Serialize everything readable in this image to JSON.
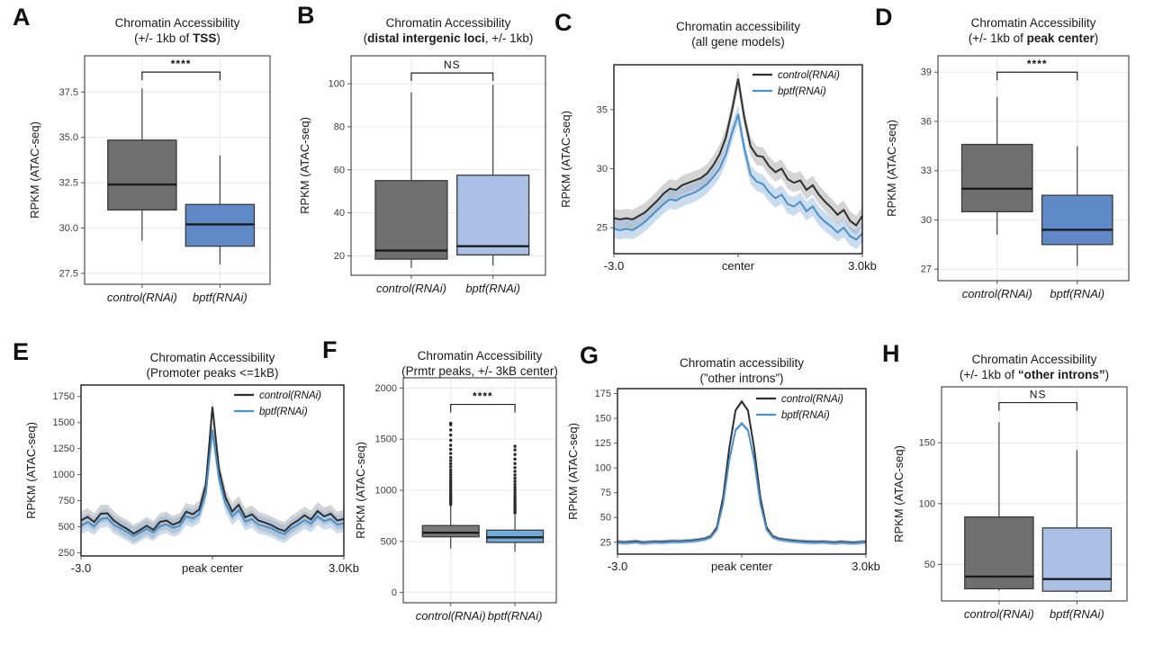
{
  "figure": {
    "background": "#ffffff",
    "y_axis_label": "RPKM (ATAC-seq)"
  },
  "colors": {
    "box_gray": "#6f6f6f",
    "box_blue_medium": "#5f89c7",
    "box_blue_light": "#a9c0e4",
    "box_blue_f": "#74aad8",
    "line_control": "#2e2e2e",
    "line_bptf": "#4a8fc8"
  },
  "chart_data": [
    {
      "letter": "A",
      "type": "box",
      "title1": "Chromatin Accessibility",
      "title2": [
        {
          "t": "(+/- 1kb of "
        },
        {
          "t": "TSS",
          "b": 1
        },
        {
          "t": ")"
        }
      ],
      "ylabel": "RPKM (ATAC-seq)",
      "yticks": [
        27.5,
        30.0,
        32.5,
        35.0,
        37.5
      ],
      "ytick_labels": [
        "27.5",
        "30.0",
        "32.5",
        "35.0",
        "37.5"
      ],
      "ylim": [
        26.9,
        39.5
      ],
      "categories": [
        "control(RNAi)",
        "bptf(RNAi)"
      ],
      "boxes": [
        {
          "whislo": 29.3,
          "q1": 31.0,
          "med": 32.4,
          "q3": 34.85,
          "whishi": 37.7,
          "fill": "#6f6f6f"
        },
        {
          "whislo": 28.0,
          "q1": 29.0,
          "med": 30.2,
          "q3": 31.3,
          "whishi": 34.0,
          "fill": "#5f89c7"
        }
      ],
      "sig": {
        "label": "****",
        "y": 38.6
      }
    },
    {
      "letter": "B",
      "type": "box",
      "title1": "Chromatin Accessibility",
      "title2": [
        {
          "t": "("
        },
        {
          "t": "distal intergenic loci",
          "b": 1
        },
        {
          "t": ", +/- 1kb)"
        }
      ],
      "ylabel": "RPKM (ATAC-seq)",
      "yticks": [
        20,
        40,
        60,
        80,
        100
      ],
      "ytick_labels": [
        "20",
        "40",
        "60",
        "80",
        "100"
      ],
      "ylim": [
        11,
        113
      ],
      "categories": [
        "control(RNAi)",
        "bptf(RNAi)"
      ],
      "boxes": [
        {
          "whislo": 14.5,
          "q1": 18.5,
          "med": 22.5,
          "q3": 55.0,
          "whishi": 96.0,
          "fill": "#6f6f6f"
        },
        {
          "whislo": 15.5,
          "q1": 20.5,
          "med": 24.5,
          "q3": 57.5,
          "whishi": 99.5,
          "fill": "#a9c0e4"
        }
      ],
      "sig": {
        "label": "NS",
        "y": 105
      }
    },
    {
      "letter": "C",
      "type": "line",
      "title1": "Chromatin accessibility",
      "title2": [
        {
          "t": "(all gene models)"
        }
      ],
      "ylabel": "RPKM (ATAC-seq)",
      "yticks": [
        25,
        30,
        35
      ],
      "ytick_labels": [
        "25",
        "30",
        "35"
      ],
      "ylim": [
        22.8,
        38.8
      ],
      "xtick_labels": [
        "-3.0",
        "center",
        "3.0kb"
      ],
      "x_range_kb": [
        -3.0,
        3.0
      ],
      "band_hw": 0.8,
      "series": [
        {
          "name": "control(RNAi)",
          "color": "#2e2e2e",
          "band": "rgba(125,125,125,0.33)",
          "values": [
            25.8,
            25.7,
            25.8,
            25.7,
            26.0,
            26.3,
            26.8,
            27.3,
            27.9,
            28.3,
            28.2,
            28.6,
            28.8,
            29.0,
            29.2,
            29.6,
            30.3,
            31.2,
            32.6,
            34.9,
            37.6,
            34.3,
            31.9,
            31.1,
            31.0,
            30.2,
            29.7,
            30.0,
            29.1,
            28.8,
            29.0,
            28.2,
            28.6,
            27.8,
            27.2,
            26.7,
            26.1,
            26.5,
            25.6,
            25.2,
            26.0
          ]
        },
        {
          "name": "bptf(RNAi)",
          "color": "#4a8fc8",
          "band": "rgba(140,178,220,0.45)",
          "values": [
            24.9,
            24.8,
            24.9,
            24.8,
            25.1,
            25.5,
            26.0,
            26.5,
            27.0,
            27.4,
            27.3,
            27.6,
            27.8,
            28.0,
            28.3,
            28.7,
            29.3,
            30.0,
            31.2,
            33.0,
            34.6,
            31.7,
            29.5,
            28.9,
            28.7,
            28.0,
            27.5,
            27.8,
            27.0,
            26.8,
            27.2,
            26.4,
            26.8,
            26.0,
            25.5,
            25.1,
            24.6,
            25.0,
            24.3,
            24.0,
            24.5
          ]
        }
      ]
    },
    {
      "letter": "D",
      "type": "box",
      "title1": "Chromatin Accessibility",
      "title2": [
        {
          "t": "(+/- 1kb of "
        },
        {
          "t": "peak center",
          "b": 1
        },
        {
          "t": ")"
        }
      ],
      "ylabel": "RPKM (ATAC-seq)",
      "yticks": [
        27,
        30,
        33,
        36,
        39
      ],
      "ytick_labels": [
        "27",
        "30",
        "33",
        "36",
        "39"
      ],
      "ylim": [
        26.3,
        40.0
      ],
      "categories": [
        "control(RNAi)",
        "bptf(RNAi)"
      ],
      "boxes": [
        {
          "whislo": 29.1,
          "q1": 30.5,
          "med": 31.9,
          "q3": 34.6,
          "whishi": 37.5,
          "fill": "#6f6f6f"
        },
        {
          "whislo": 27.2,
          "q1": 28.5,
          "med": 29.4,
          "q3": 31.5,
          "whishi": 34.5,
          "fill": "#5f89c7"
        }
      ],
      "sig": {
        "label": "****",
        "y": 39.0
      }
    },
    {
      "letter": "E",
      "type": "line",
      "title1": "Chromatin Accessibility",
      "title2": [
        {
          "t": "(Promoter peaks <=1kB)"
        }
      ],
      "ylabel": "RPKM (ATAC-seq)",
      "yticks": [
        250,
        500,
        750,
        1000,
        1250,
        1500,
        1750
      ],
      "ytick_labels": [
        "250",
        "500",
        "750",
        "1000",
        "1250",
        "1500",
        "1750"
      ],
      "ylim": [
        220,
        1860
      ],
      "xtick_labels": [
        "-3.0",
        "peak center",
        "3.0Kb"
      ],
      "x_range_kb": [
        -3.0,
        3.0
      ],
      "band_hw": 85,
      "series": [
        {
          "name": "control(RNAi)",
          "color": "#2e2e2e",
          "band": "rgba(125,125,125,0.33)",
          "values": [
            560,
            595,
            545,
            625,
            630,
            560,
            515,
            480,
            435,
            470,
            510,
            470,
            545,
            560,
            520,
            545,
            645,
            620,
            665,
            905,
            1650,
            1050,
            780,
            645,
            710,
            590,
            620,
            560,
            540,
            515,
            480,
            460,
            520,
            560,
            610,
            570,
            650,
            600,
            625,
            560,
            575
          ]
        },
        {
          "name": "bptf(RNAi)",
          "color": "#4a8fc8",
          "band": "rgba(140,178,220,0.45)",
          "values": [
            510,
            545,
            505,
            575,
            585,
            520,
            485,
            450,
            410,
            445,
            480,
            445,
            505,
            525,
            490,
            510,
            600,
            580,
            620,
            820,
            1430,
            960,
            720,
            600,
            660,
            550,
            575,
            520,
            505,
            485,
            450,
            430,
            485,
            520,
            565,
            530,
            600,
            555,
            575,
            520,
            535
          ]
        }
      ]
    },
    {
      "letter": "F",
      "type": "box",
      "title1": "Chromatin Accessibility",
      "title2": [
        {
          "t": "(Prmtr peaks, +/- 3kB center)"
        }
      ],
      "ylabel": "RPKM (ATAC-seq)",
      "yticks": [
        0,
        500,
        1000,
        1500,
        2000
      ],
      "ytick_labels": [
        "0",
        "500",
        "1000",
        "1500",
        "2000"
      ],
      "ylim": [
        -100,
        2100
      ],
      "categories": [
        "control(RNAi)",
        "bptf(RNAi)"
      ],
      "boxes": [
        {
          "whislo": 430,
          "q1": 545,
          "med": 585,
          "q3": 655,
          "whishi": 850,
          "fill": "#7a7a7a",
          "outliers": [
            860,
            875,
            890,
            905,
            920,
            935,
            950,
            965,
            980,
            1000,
            1020,
            1040,
            1060,
            1080,
            1100,
            1125,
            1150,
            1175,
            1200,
            1230,
            1260,
            1290,
            1320,
            1360,
            1400,
            1440,
            1490,
            1540,
            1590,
            1640,
            1655
          ]
        },
        {
          "whislo": 400,
          "q1": 490,
          "med": 540,
          "q3": 610,
          "whishi": 770,
          "fill": "#74aad8",
          "outliers": [
            780,
            795,
            810,
            825,
            840,
            858,
            876,
            895,
            915,
            935,
            958,
            980,
            1005,
            1030,
            1058,
            1088,
            1118,
            1150,
            1185,
            1222,
            1262,
            1305,
            1350,
            1395,
            1430
          ]
        }
      ],
      "sig": {
        "label": "****",
        "y": 1840
      }
    },
    {
      "letter": "G",
      "type": "line",
      "title1": "Chromatin accessibility",
      "title2": [
        {
          "t": "(”other introns”)"
        }
      ],
      "ylabel": "RPKM (ATAC-seq)",
      "yticks": [
        25,
        50,
        75,
        100,
        125,
        150,
        175
      ],
      "ytick_labels": [
        "25",
        "50",
        "75",
        "100",
        "125",
        "150",
        "175"
      ],
      "ylim": [
        13,
        180
      ],
      "xtick_labels": [
        "-3.0",
        "peak center",
        "3.0kb"
      ],
      "x_range_kb": [
        -3.0,
        3.0
      ],
      "band_hw": 2.2,
      "series": [
        {
          "name": "control(RNAi)",
          "color": "#2e2e2e",
          "band": "rgba(125,125,125,0.33)",
          "values": [
            25.5,
            25.0,
            25.3,
            26.0,
            24.8,
            25.2,
            25.6,
            25.3,
            25.8,
            26.2,
            26.0,
            26.4,
            26.8,
            27.5,
            28.5,
            31.0,
            40.0,
            70.0,
            120.0,
            158.0,
            167.0,
            158.0,
            120.0,
            70.0,
            40.0,
            31.0,
            28.5,
            27.5,
            26.8,
            26.2,
            25.8,
            25.5,
            25.3,
            25.6,
            25.2,
            24.8,
            25.4,
            25.0,
            24.6,
            25.2,
            25.6
          ]
        },
        {
          "name": "bptf(RNAi)",
          "color": "#4a8fc8",
          "band": "rgba(140,178,220,0.45)",
          "values": [
            24.8,
            24.3,
            24.6,
            25.2,
            24.1,
            24.5,
            24.9,
            24.6,
            25.1,
            25.5,
            25.3,
            25.7,
            26.1,
            26.8,
            27.8,
            30.0,
            38.0,
            64.0,
            108.0,
            138.0,
            145.0,
            138.0,
            108.0,
            64.0,
            38.0,
            30.0,
            27.8,
            26.8,
            26.1,
            25.5,
            25.1,
            24.8,
            24.6,
            24.9,
            24.5,
            24.1,
            24.7,
            24.3,
            23.9,
            24.5,
            24.9
          ]
        }
      ]
    },
    {
      "letter": "H",
      "type": "box",
      "title1": "Chromatin Accessibility",
      "title2": [
        {
          "t": "(+/- 1kb of "
        },
        {
          "t": "“other introns”",
          "b": 1
        },
        {
          "t": ")"
        }
      ],
      "ylabel": "RPKM (ATAC-seq)",
      "yticks": [
        50,
        100,
        150
      ],
      "ytick_labels": [
        "50",
        "100",
        "150"
      ],
      "ylim": [
        20,
        196
      ],
      "categories": [
        "control(RNAi)",
        "bptf(RNAi)"
      ],
      "boxes": [
        {
          "whislo": 28.5,
          "q1": 30.0,
          "med": 40.0,
          "q3": 89.0,
          "whishi": 167.0,
          "fill": "#6f6f6f"
        },
        {
          "whislo": 26.5,
          "q1": 28.0,
          "med": 38.0,
          "q3": 80.0,
          "whishi": 144.0,
          "fill": "#a9c0e4"
        }
      ],
      "sig": {
        "label": "NS",
        "y": 183
      }
    }
  ]
}
